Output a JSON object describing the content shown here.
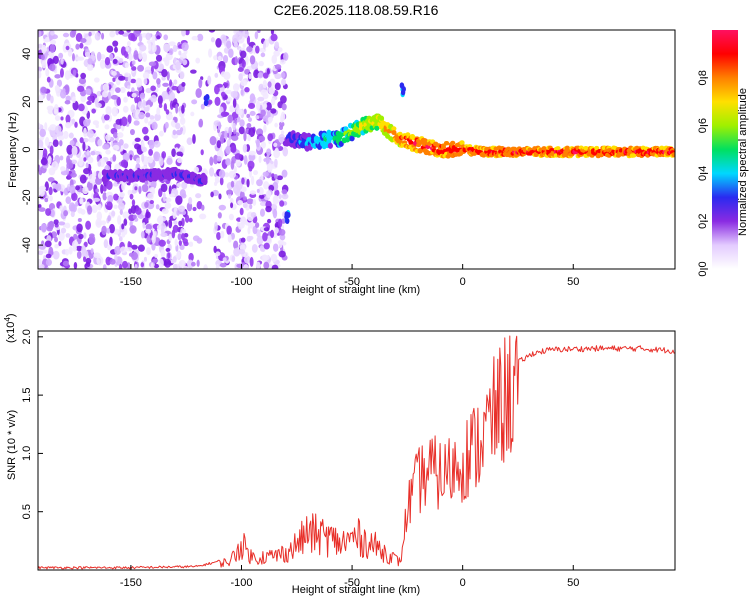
{
  "title": "C2E6.2025.118.08.59.R16",
  "colors": {
    "snr_line": "#e8302a",
    "axis": "#000000"
  },
  "chart_data": [
    {
      "type": "heatmap",
      "title": "C2E6.2025.118.08.59.R16",
      "xlabel": "Height of straight line (km)",
      "ylabel": "Frequency (Hz)",
      "xlim": [
        -192,
        96
      ],
      "ylim": [
        -50,
        50
      ],
      "xticks": [
        -150,
        -100,
        -50,
        0,
        50
      ],
      "yticks": [
        -40,
        -20,
        0,
        20,
        40
      ],
      "colorbar": {
        "label": "Normalized spectral amplitude",
        "range": [
          0,
          1
        ],
        "ticks": [
          "0.0",
          "0.2",
          "0.4",
          "0.6",
          "0.8"
        ],
        "colors": [
          "#ffffff",
          "#e3cbff",
          "#8a2be2",
          "#2a2af0",
          "#00d8ff",
          "#00e060",
          "#a0f000",
          "#ffe000",
          "#ff8000",
          "#ff0000",
          "#ff1060"
        ]
      },
      "noise_x_range": [
        -192,
        -80
      ],
      "dominant_frequency_track": [
        {
          "x": -162,
          "y": -11
        },
        {
          "x": -145,
          "y": -11
        },
        {
          "x": -130,
          "y": -10
        },
        {
          "x": -118,
          "y": -13
        },
        {
          "x": -79,
          "y": 5
        },
        {
          "x": -70,
          "y": 3
        },
        {
          "x": -55,
          "y": 5
        },
        {
          "x": -45,
          "y": 10
        },
        {
          "x": -38,
          "y": 12
        },
        {
          "x": -30,
          "y": 5
        },
        {
          "x": -20,
          "y": 2
        },
        {
          "x": -10,
          "y": 0
        },
        {
          "x": 0,
          "y": 0
        },
        {
          "x": 10,
          "y": -1
        },
        {
          "x": 40,
          "y": -1
        },
        {
          "x": 70,
          "y": -1
        },
        {
          "x": 96,
          "y": -1
        }
      ],
      "features": [
        {
          "x": -116,
          "y": 20
        },
        {
          "x": -79,
          "y": -28
        },
        {
          "x": -27,
          "y": 25
        }
      ]
    },
    {
      "type": "line",
      "xlabel": "Height of straight line (km)",
      "ylabel": "SNR (10 * v/v)",
      "y_scale_label": "(x10",
      "y_scale_exp": "4",
      "xlim": [
        -192,
        96
      ],
      "ylim": [
        0,
        2.05
      ],
      "xticks": [
        -150,
        -100,
        -50,
        0,
        50
      ],
      "yticks": [
        "0.5",
        "1.0",
        "1.5",
        "2.0"
      ],
      "series": [
        {
          "values": [
            {
              "x": -192,
              "y": 0.02
            },
            {
              "x": -150,
              "y": 0.02
            },
            {
              "x": -120,
              "y": 0.03
            },
            {
              "x": -105,
              "y": 0.1
            },
            {
              "x": -100,
              "y": 0.3
            },
            {
              "x": -95,
              "y": 0.14
            },
            {
              "x": -85,
              "y": 0.16
            },
            {
              "x": -78,
              "y": 0.22
            },
            {
              "x": -70,
              "y": 0.42
            },
            {
              "x": -62,
              "y": 0.38
            },
            {
              "x": -55,
              "y": 0.3
            },
            {
              "x": -48,
              "y": 0.38
            },
            {
              "x": -40,
              "y": 0.28
            },
            {
              "x": -32,
              "y": 0.15
            },
            {
              "x": -28,
              "y": 0.08
            },
            {
              "x": -25,
              "y": 0.6
            },
            {
              "x": -20,
              "y": 0.85
            },
            {
              "x": -15,
              "y": 0.95
            },
            {
              "x": -10,
              "y": 0.9
            },
            {
              "x": -5,
              "y": 0.95
            },
            {
              "x": 0,
              "y": 1.05
            },
            {
              "x": 5,
              "y": 1.15
            },
            {
              "x": 10,
              "y": 1.3
            },
            {
              "x": 15,
              "y": 1.5
            },
            {
              "x": 20,
              "y": 1.65
            },
            {
              "x": 25,
              "y": 1.78
            },
            {
              "x": 32,
              "y": 1.86
            },
            {
              "x": 40,
              "y": 1.89
            },
            {
              "x": 60,
              "y": 1.9
            },
            {
              "x": 80,
              "y": 1.9
            },
            {
              "x": 96,
              "y": 1.88
            }
          ]
        }
      ]
    }
  ]
}
